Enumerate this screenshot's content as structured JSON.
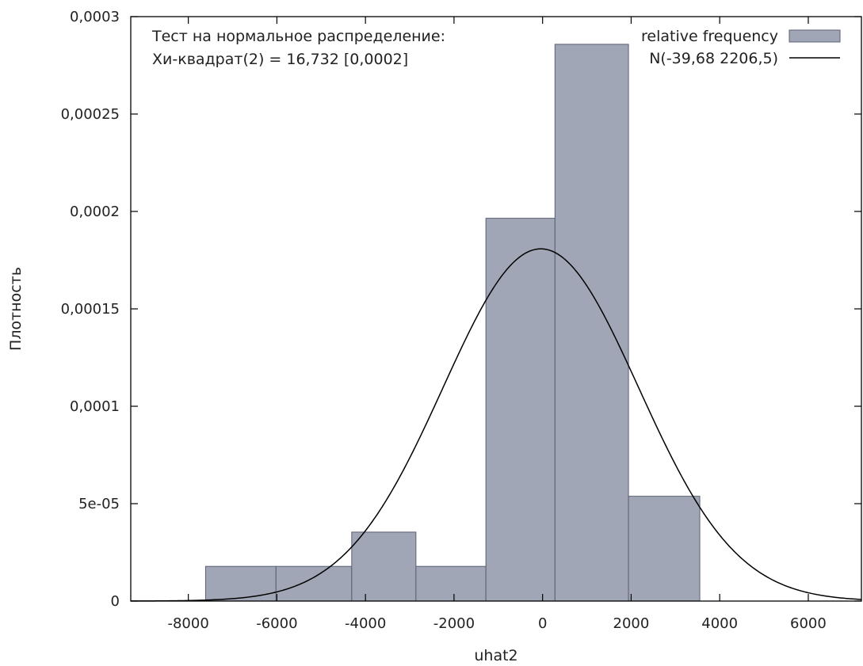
{
  "chart_data": {
    "type": "bar",
    "subtype": "histogram with normal density curve",
    "xlabel": "uhat2",
    "ylabel": "Плотность",
    "xlim": [
      -9300,
      7200
    ],
    "ylim": [
      0,
      0.0003
    ],
    "x_ticks": [
      {
        "value": -8000,
        "label": "-8000"
      },
      {
        "value": -6000,
        "label": "-6000"
      },
      {
        "value": -4000,
        "label": "-4000"
      },
      {
        "value": -2000,
        "label": "-2000"
      },
      {
        "value": 0,
        "label": "0"
      },
      {
        "value": 2000,
        "label": "2000"
      },
      {
        "value": 4000,
        "label": "4000"
      },
      {
        "value": 6000,
        "label": "6000"
      }
    ],
    "y_ticks": [
      {
        "value": 0,
        "label": "0"
      },
      {
        "value": 5e-05,
        "label": "5e-05"
      },
      {
        "value": 0.0001,
        "label": "0,0001"
      },
      {
        "value": 0.00015,
        "label": "0,00015"
      },
      {
        "value": 0.0002,
        "label": "0,0002"
      },
      {
        "value": 0.00025,
        "label": "0,00025"
      },
      {
        "value": 0.0003,
        "label": "0,0003"
      }
    ],
    "bins": [
      {
        "x0": -7610,
        "x1": -6020,
        "density": 1.78e-05
      },
      {
        "x0": -6020,
        "x1": -4310,
        "density": 1.78e-05
      },
      {
        "x0": -4310,
        "x1": -2860,
        "density": 3.54e-05
      },
      {
        "x0": -2860,
        "x1": -1280,
        "density": 1.78e-05
      },
      {
        "x0": -1280,
        "x1": 280,
        "density": 0.0001965
      },
      {
        "x0": 280,
        "x1": 1940,
        "density": 0.0002858
      },
      {
        "x0": 1940,
        "x1": 3550,
        "density": 5.38e-05
      }
    ],
    "normal_curve": {
      "mean": -39.68,
      "sd": 2206.5
    },
    "annotation": [
      "Тест на нормальное распределение:",
      "Хи-квадрат(2) = 16,732 [0,0002]"
    ],
    "legend": {
      "placement": "top-right",
      "entries": [
        {
          "label": "relative frequency",
          "kind": "bar"
        },
        {
          "label": "N(-39,68 2206,5)",
          "kind": "line"
        }
      ]
    },
    "colors": {
      "bar_fill": "#a0a6b5",
      "bar_stroke": "#5a6075",
      "line": "#000000",
      "axis": "#000000"
    },
    "grid": false
  }
}
